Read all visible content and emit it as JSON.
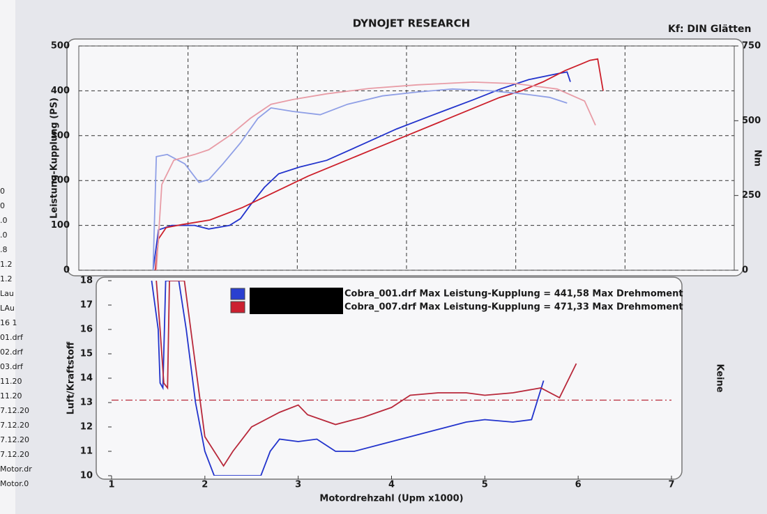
{
  "header": {
    "title": "DYNOJET RESEARCH",
    "settings": "Kf: DIN  Glätten"
  },
  "sidebar": [
    "0",
    "0",
    ".0",
    ".0",
    ".8",
    "1.2",
    "1.2",
    "Lau",
    "LAu",
    "16 1",
    "01.drf",
    "02.drf",
    "03.drf",
    "11.20",
    "11.20",
    "7.12.20",
    "7.12.20",
    "7.12.20",
    "7.12.20",
    "Motor.dr",
    "Motor.0"
  ],
  "legend": [
    {
      "label": "Cobra_001.drf Max Leistung-Kupplung = 441,58 Max Drehmoment",
      "color": "#2a3fd0"
    },
    {
      "label": "Cobra_007.drf Max Leistung-Kupplung = 471,33 Max Drehmoment",
      "color": "#cc2030"
    }
  ],
  "chart_data": [
    {
      "type": "line",
      "ylabel": "Leistung-Kupplung (PS)",
      "y2label": "Nm",
      "xlim": [
        1,
        7
      ],
      "xticks": [
        2,
        3,
        4,
        5,
        6
      ],
      "show_xtick_labels": false,
      "ylim": [
        0,
        500
      ],
      "yticks": [
        0,
        100,
        200,
        300,
        400,
        500
      ],
      "y2lim": [
        0,
        750
      ],
      "y2ticks": [
        0,
        250,
        500,
        750
      ],
      "grid": true,
      "series": [
        {
          "color": "#2233cc",
          "x": [
            1.68,
            1.73,
            1.85,
            2.06,
            2.19,
            2.38,
            2.48,
            2.57,
            2.7,
            2.83,
            3.02,
            3.27,
            3.59,
            3.91,
            4.23,
            4.61,
            4.87,
            5.12,
            5.38,
            5.47,
            5.5
          ],
          "values": [
            0,
            90,
            100,
            100,
            92,
            100,
            115,
            145,
            185,
            215,
            230,
            245,
            280,
            315,
            345,
            380,
            405,
            425,
            438,
            442,
            420
          ]
        },
        {
          "color": "#cc1f2a",
          "x": [
            1.7,
            1.73,
            1.8,
            1.95,
            2.2,
            2.5,
            2.8,
            3.1,
            3.4,
            3.7,
            4.0,
            4.3,
            4.6,
            4.85,
            5.05,
            5.25,
            5.45,
            5.6,
            5.68,
            5.75,
            5.8
          ],
          "values": [
            0,
            70,
            95,
            102,
            112,
            140,
            175,
            210,
            240,
            270,
            300,
            330,
            360,
            385,
            400,
            420,
            445,
            460,
            468,
            471,
            400
          ]
        },
        {
          "color": "#8f9fe6",
          "axis": "y2",
          "x": [
            1.68,
            1.71,
            1.81,
            1.97,
            2.1,
            2.19,
            2.32,
            2.48,
            2.64,
            2.76,
            2.96,
            3.21,
            3.46,
            3.78,
            4.1,
            4.42,
            4.74,
            5.06,
            5.31,
            5.47
          ],
          "values": [
            0,
            380,
            387,
            356,
            294,
            303,
            356,
            426,
            508,
            543,
            531,
            520,
            555,
            583,
            596,
            606,
            601,
            590,
            578,
            559
          ]
        },
        {
          "color": "#e89ca6",
          "axis": "y2",
          "x": [
            1.71,
            1.76,
            1.87,
            2.06,
            2.19,
            2.38,
            2.57,
            2.76,
            2.96,
            3.27,
            3.66,
            4.1,
            4.61,
            5.0,
            5.38,
            5.63,
            5.73
          ],
          "values": [
            0,
            287,
            368,
            387,
            403,
            450,
            508,
            555,
            571,
            590,
            608,
            620,
            629,
            624,
            606,
            566,
            485
          ]
        }
      ]
    },
    {
      "type": "line",
      "xlabel": "Motordrehzahl (Upm x1000)",
      "ylabel": "Luft/Kraftstoff",
      "y2label": "Keine",
      "xlim": [
        1,
        7
      ],
      "xticks": [
        1,
        2,
        3,
        4,
        5,
        6,
        7
      ],
      "ylim": [
        10,
        18
      ],
      "yticks": [
        10,
        11,
        12,
        13,
        14,
        15,
        16,
        17,
        18
      ],
      "grid": false,
      "reference_line": {
        "value": 13.1,
        "color": "#b8283a"
      },
      "series": [
        {
          "color": "#2233cc",
          "x": [
            1.43,
            1.5,
            1.52,
            1.55,
            1.58,
            1.72,
            1.8,
            1.9,
            2.0,
            2.1,
            2.6,
            2.7,
            2.8,
            3.0,
            3.2,
            3.4,
            3.6,
            3.9,
            4.2,
            4.5,
            4.8,
            5.0,
            5.3,
            5.5,
            5.63
          ],
          "values": [
            18,
            16,
            13.8,
            13.6,
            18,
            18,
            16,
            13,
            11,
            10,
            10,
            11,
            11.5,
            11.4,
            11.5,
            11.0,
            11.0,
            11.3,
            11.6,
            11.9,
            12.2,
            12.3,
            12.2,
            12.3,
            13.9
          ]
        },
        {
          "color": "#b8283a",
          "x": [
            1.48,
            1.52,
            1.56,
            1.6,
            1.62,
            1.78,
            2.0,
            2.2,
            2.3,
            2.5,
            2.8,
            3.0,
            3.1,
            3.4,
            3.7,
            4.0,
            4.2,
            4.5,
            4.8,
            5.0,
            5.3,
            5.6,
            5.8,
            5.98
          ],
          "values": [
            18,
            16,
            13.8,
            13.6,
            18,
            18,
            11.6,
            10.4,
            11.0,
            12.0,
            12.6,
            12.9,
            12.5,
            12.1,
            12.4,
            12.8,
            13.3,
            13.4,
            13.4,
            13.3,
            13.4,
            13.6,
            13.2,
            14.6
          ]
        }
      ]
    }
  ]
}
